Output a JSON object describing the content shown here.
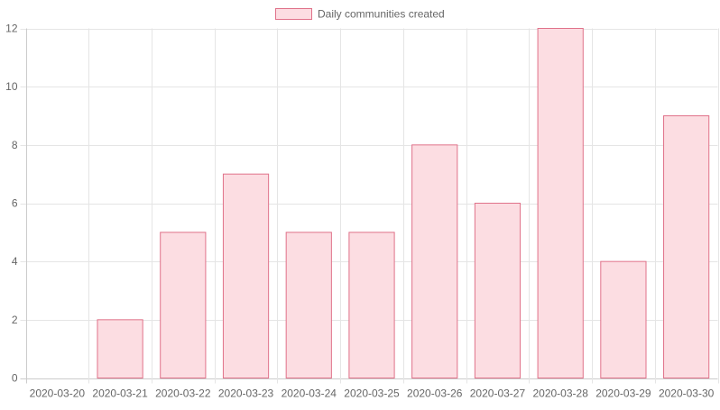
{
  "chart_data": {
    "type": "bar",
    "categories": [
      "2020-03-20",
      "2020-03-21",
      "2020-03-22",
      "2020-03-23",
      "2020-03-24",
      "2020-03-25",
      "2020-03-26",
      "2020-03-27",
      "2020-03-28",
      "2020-03-29",
      "2020-03-30"
    ],
    "series": [
      {
        "name": "Daily communities created",
        "values": [
          0,
          2,
          5,
          7,
          5,
          5,
          8,
          6,
          12,
          4,
          9
        ],
        "fill_color": "#fcdde2",
        "border_color": "#e0728a"
      }
    ],
    "y_ticks": [
      0,
      2,
      4,
      6,
      8,
      10,
      12
    ],
    "ylim": [
      0,
      12
    ],
    "grid": true,
    "legend_position": "top-center",
    "grid_color": "#e5e5e5",
    "axis_color": "#cccccc",
    "text_color": "#666666"
  }
}
